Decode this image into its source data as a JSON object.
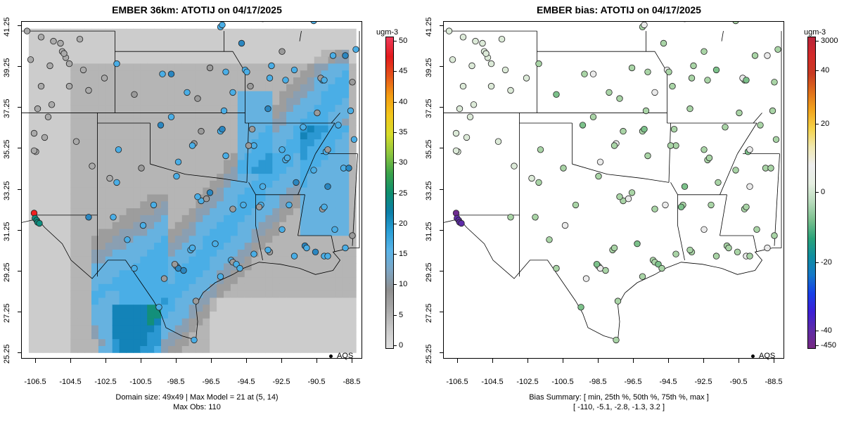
{
  "left": {
    "title": "EMBER 36km: ATOTIJ on 04/17/2025",
    "units": "ugm-3",
    "legend": "AQS",
    "footer_line1": "Domain size: 49x49 | Max Model = 21 at (5, 14)",
    "footer_line2": "Max Obs: 110",
    "colorbar_ticks": [
      "50",
      "45",
      "40",
      "35",
      "30",
      "25",
      "20",
      "15",
      "10",
      "5",
      "0"
    ]
  },
  "right": {
    "title": "EMBER bias: ATOTIJ on 04/17/2025",
    "units": "ugm-3",
    "legend": "AQS",
    "footer_line1": "Bias Summary: [ min, 25th %, 50th %, 75th %, max ]",
    "footer_line2": "[ -110,   -5.1,   -2.8,   -1.3,   3.2 ]",
    "colorbar_ticks": [
      "3000",
      "40",
      "20",
      "0",
      "-20",
      "-40",
      "-450"
    ]
  },
  "axes": {
    "x_ticks": [
      "-106.5",
      "-104.5",
      "-102.5",
      "-100.5",
      "-98.5",
      "-96.5",
      "-94.5",
      "-92.5",
      "-90.5",
      "-88.5"
    ],
    "y_ticks": [
      "41.25",
      "39.25",
      "37.25",
      "35.25",
      "33.25",
      "31.25",
      "29.25",
      "27.25",
      "25.25"
    ],
    "x_range": [
      -107.3,
      -87.9
    ],
    "y_range": [
      24.95,
      41.45
    ]
  },
  "colors": {
    "model_scale": [
      "#e0e0e0",
      "#c8c8c8",
      "#a9a9a9",
      "#8f8f8f",
      "#7ea6c4",
      "#5ab4e8",
      "#2a9fd6",
      "#0b7fa8",
      "#0e8f6e",
      "#3ba34a",
      "#8cc63f",
      "#d6dc2a",
      "#f3c61b",
      "#f39c12",
      "#e5541a",
      "#e31a1c",
      "#ef3b5a"
    ],
    "bias_scale": [
      "#762a83",
      "#5e2ba8",
      "#3c1fd6",
      "#1740e8",
      "#1478c8",
      "#0f8ea0",
      "#2aa37a",
      "#7ac08e",
      "#b8dcbc",
      "#e6efe2",
      "#eeeeee",
      "#f0e8b0",
      "#f5d34a",
      "#f2a51c",
      "#e0701a",
      "#c83a22",
      "#d42a2a",
      "#b8243a"
    ]
  }
}
